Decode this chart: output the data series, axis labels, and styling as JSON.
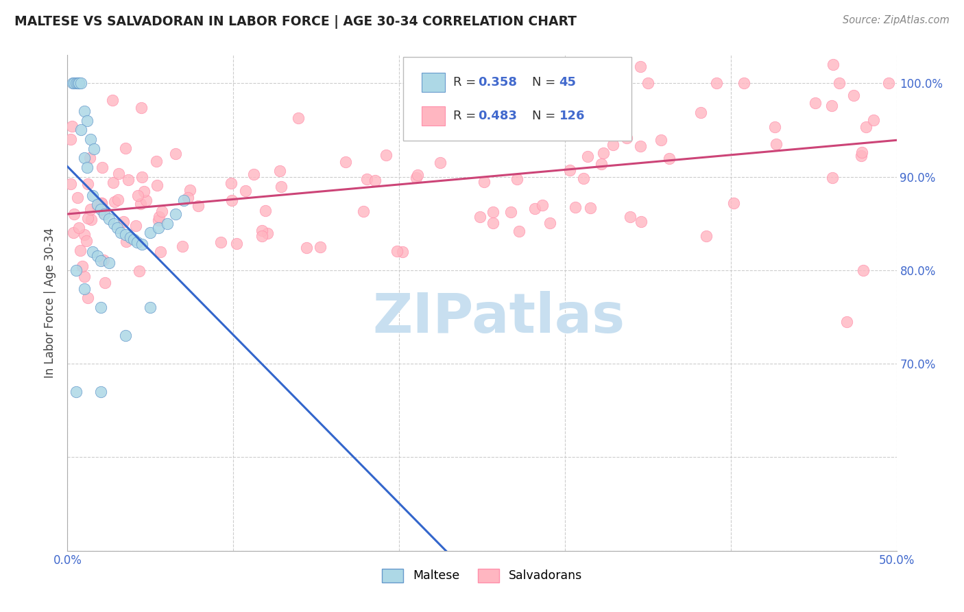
{
  "title": "MALTESE VS SALVADORAN IN LABOR FORCE | AGE 30-34 CORRELATION CHART",
  "source": "Source: ZipAtlas.com",
  "ylabel": "In Labor Force | Age 30-34",
  "xlim": [
    0.0,
    0.5
  ],
  "ylim": [
    0.5,
    1.03
  ],
  "maltese_R": 0.358,
  "maltese_N": 45,
  "salvadoran_R": 0.483,
  "salvadoran_N": 126,
  "maltese_color": "#ADD8E6",
  "salvadoran_color": "#FFB6C1",
  "maltese_edge_color": "#6699CC",
  "salvadoran_edge_color": "#FF8FAB",
  "maltese_line_color": "#3366CC",
  "salvadoran_line_color": "#CC4477",
  "watermark_color": "#C8DFF0",
  "background_color": "#ffffff",
  "grid_color": "#cccccc"
}
